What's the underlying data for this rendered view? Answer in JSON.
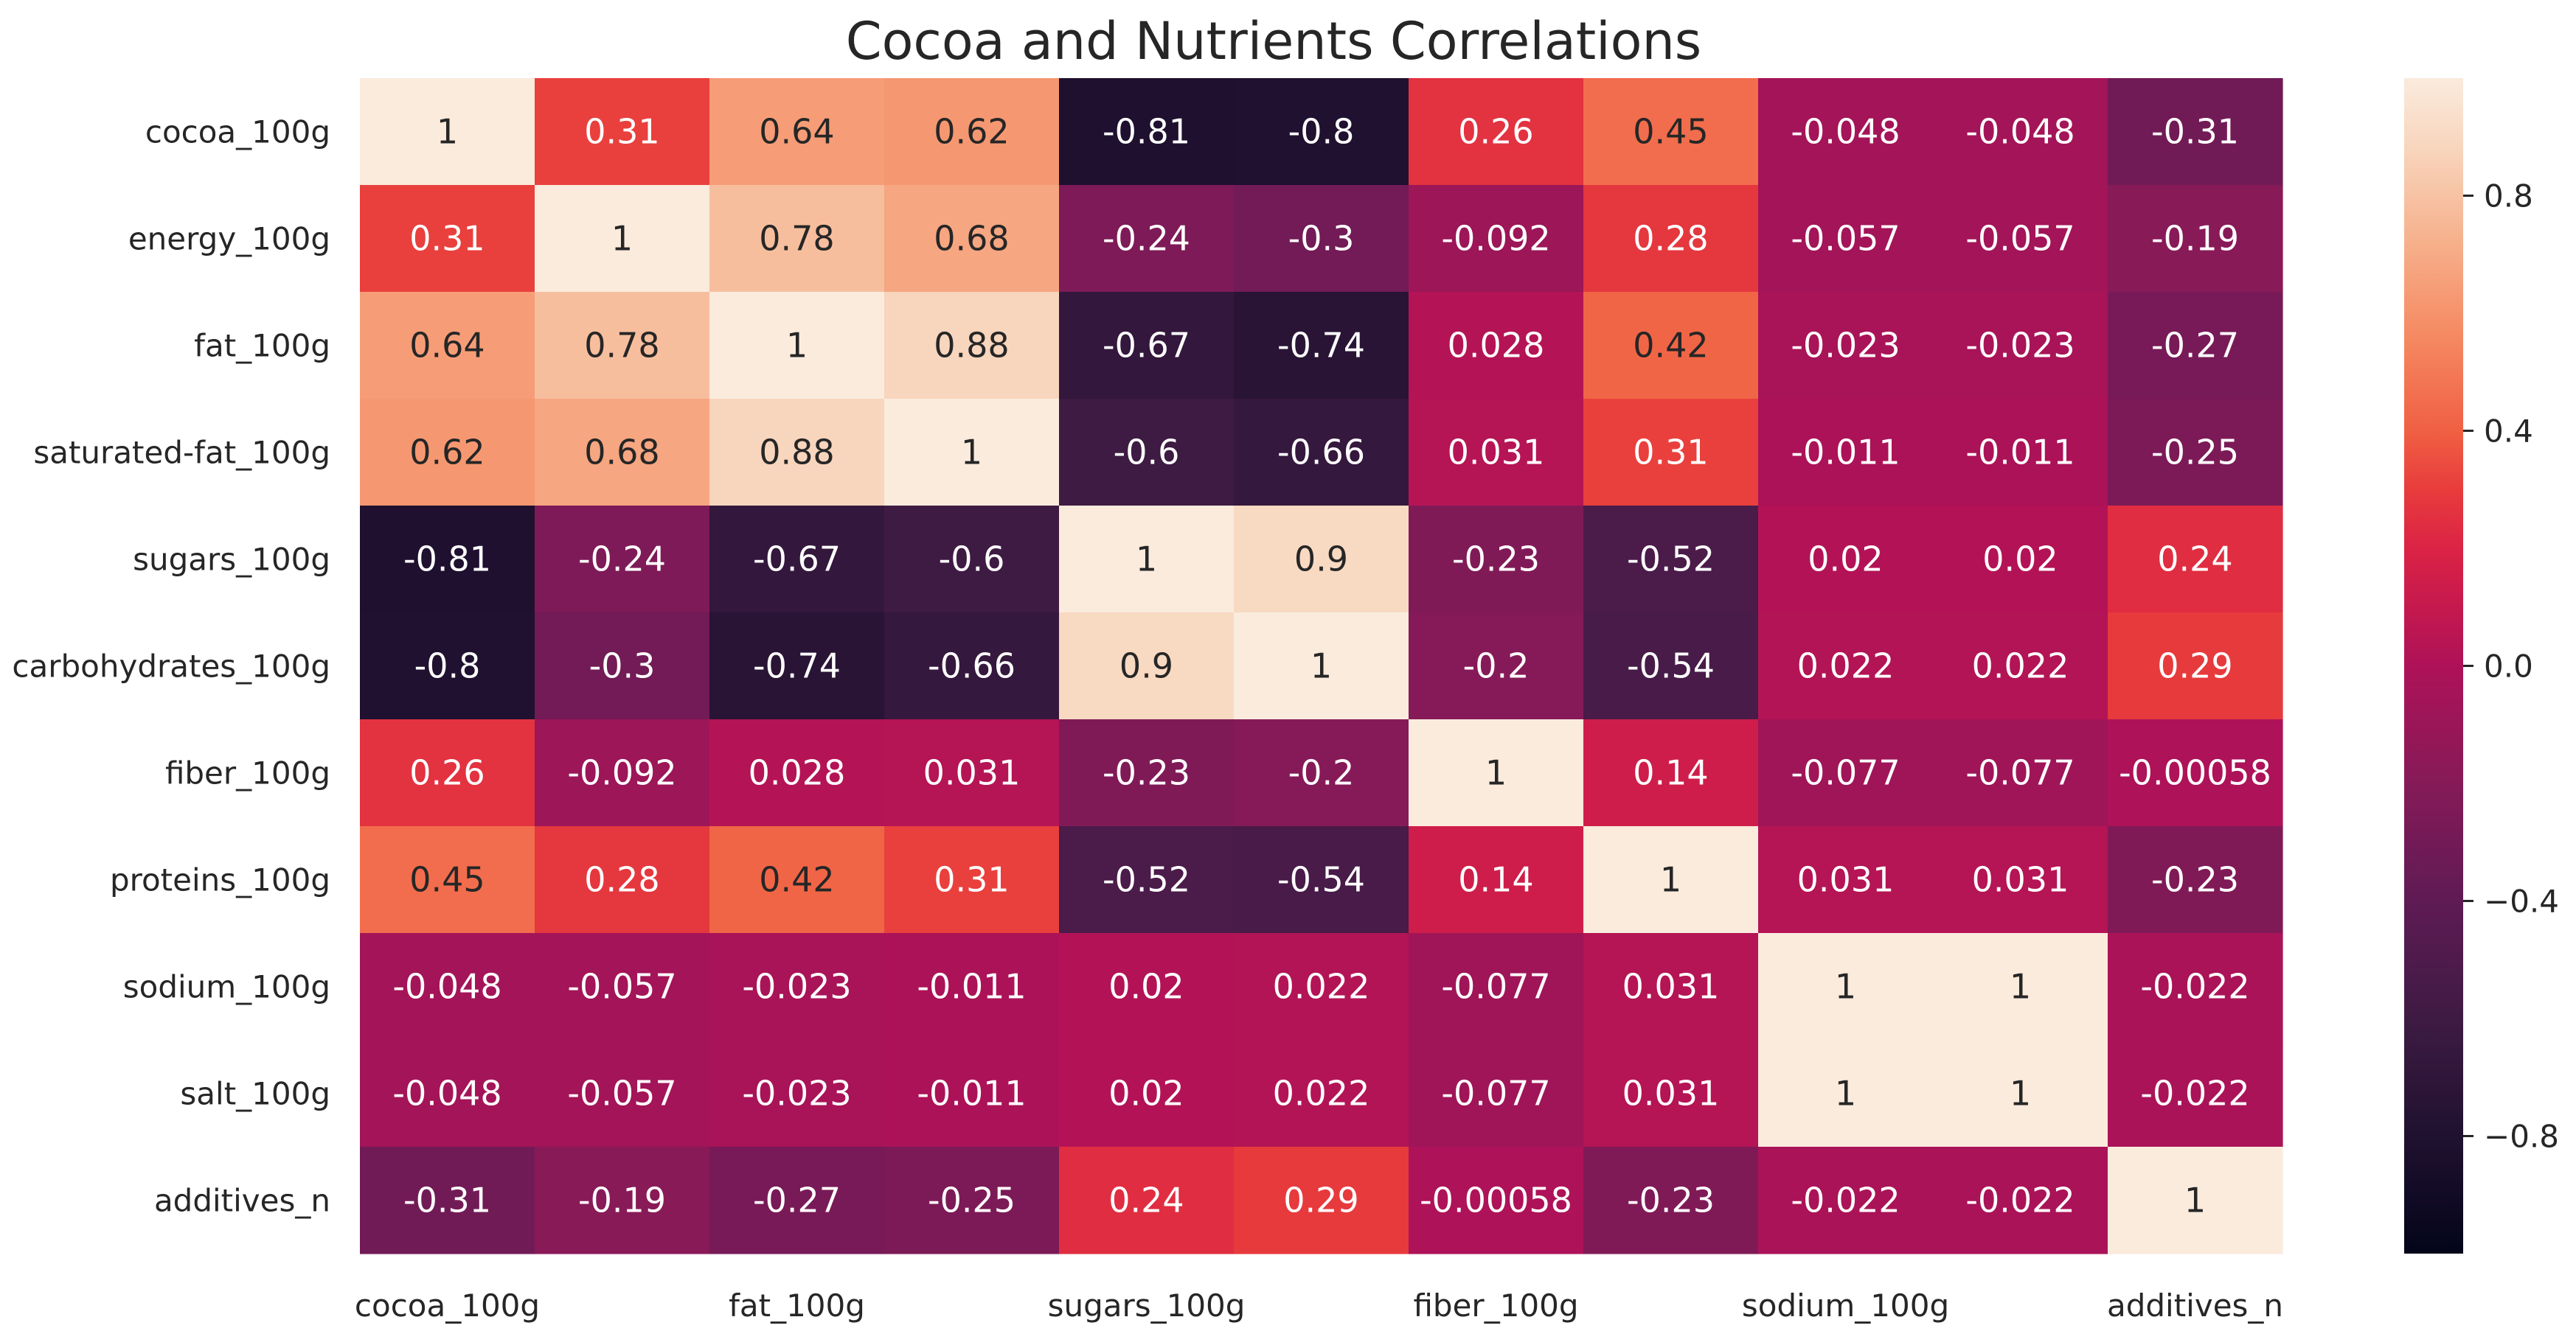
{
  "chart_data": {
    "type": "heatmap",
    "title": "Cocoa and Nutrients Correlations",
    "rows": [
      "cocoa_100g",
      "energy_100g",
      "fat_100g",
      "saturated-fat_100g",
      "sugars_100g",
      "carbohydrates_100g",
      "fiber_100g",
      "proteins_100g",
      "sodium_100g",
      "salt_100g",
      "additives_n"
    ],
    "columns": [
      "cocoa_100g",
      "energy_100g",
      "fat_100g",
      "saturated-fat_100g",
      "sugars_100g",
      "carbohydrates_100g",
      "fiber_100g",
      "proteins_100g",
      "sodium_100g",
      "salt_100g",
      "additives_n"
    ],
    "x_tick_labels": [
      "cocoa_100g",
      "fat_100g",
      "sugars_100g",
      "fiber_100g",
      "sodium_100g",
      "additives_n"
    ],
    "x_tick_indices": [
      0,
      2,
      4,
      6,
      8,
      10
    ],
    "values": [
      [
        1,
        0.31,
        0.64,
        0.62,
        -0.81,
        -0.8,
        0.26,
        0.45,
        -0.048,
        -0.048,
        -0.31
      ],
      [
        0.31,
        1,
        0.78,
        0.68,
        -0.24,
        -0.3,
        -0.092,
        0.28,
        -0.057,
        -0.057,
        -0.19
      ],
      [
        0.64,
        0.78,
        1,
        0.88,
        -0.67,
        -0.74,
        0.028,
        0.42,
        -0.023,
        -0.023,
        -0.27
      ],
      [
        0.62,
        0.68,
        0.88,
        1,
        -0.6,
        -0.66,
        0.031,
        0.31,
        -0.011,
        -0.011,
        -0.25
      ],
      [
        -0.81,
        -0.24,
        -0.67,
        -0.6,
        1,
        0.9,
        -0.23,
        -0.52,
        0.02,
        0.02,
        0.24
      ],
      [
        -0.8,
        -0.3,
        -0.74,
        -0.66,
        0.9,
        1,
        -0.2,
        -0.54,
        0.022,
        0.022,
        0.29
      ],
      [
        0.26,
        -0.092,
        0.028,
        0.031,
        -0.23,
        -0.2,
        1,
        0.14,
        -0.077,
        -0.077,
        -0.00058
      ],
      [
        0.45,
        0.28,
        0.42,
        0.31,
        -0.52,
        -0.54,
        0.14,
        1,
        0.031,
        0.031,
        -0.23
      ],
      [
        -0.048,
        -0.057,
        -0.023,
        -0.011,
        0.02,
        0.022,
        -0.077,
        0.031,
        1,
        1,
        -0.022
      ],
      [
        -0.048,
        -0.057,
        -0.023,
        -0.011,
        0.02,
        0.022,
        -0.077,
        0.031,
        1,
        1,
        -0.022
      ],
      [
        -0.31,
        -0.19,
        -0.27,
        -0.25,
        0.24,
        0.29,
        -0.00058,
        -0.23,
        -0.022,
        -0.022,
        1
      ]
    ],
    "vmin": -1,
    "vmax": 1,
    "colormap": "rocket",
    "colorbar": {
      "ticks": [
        -0.8,
        -0.4,
        0.0,
        0.4,
        0.8
      ],
      "tick_labels": [
        "−0.8",
        "−0.4",
        "0.0",
        "0.4",
        "0.8"
      ]
    }
  }
}
